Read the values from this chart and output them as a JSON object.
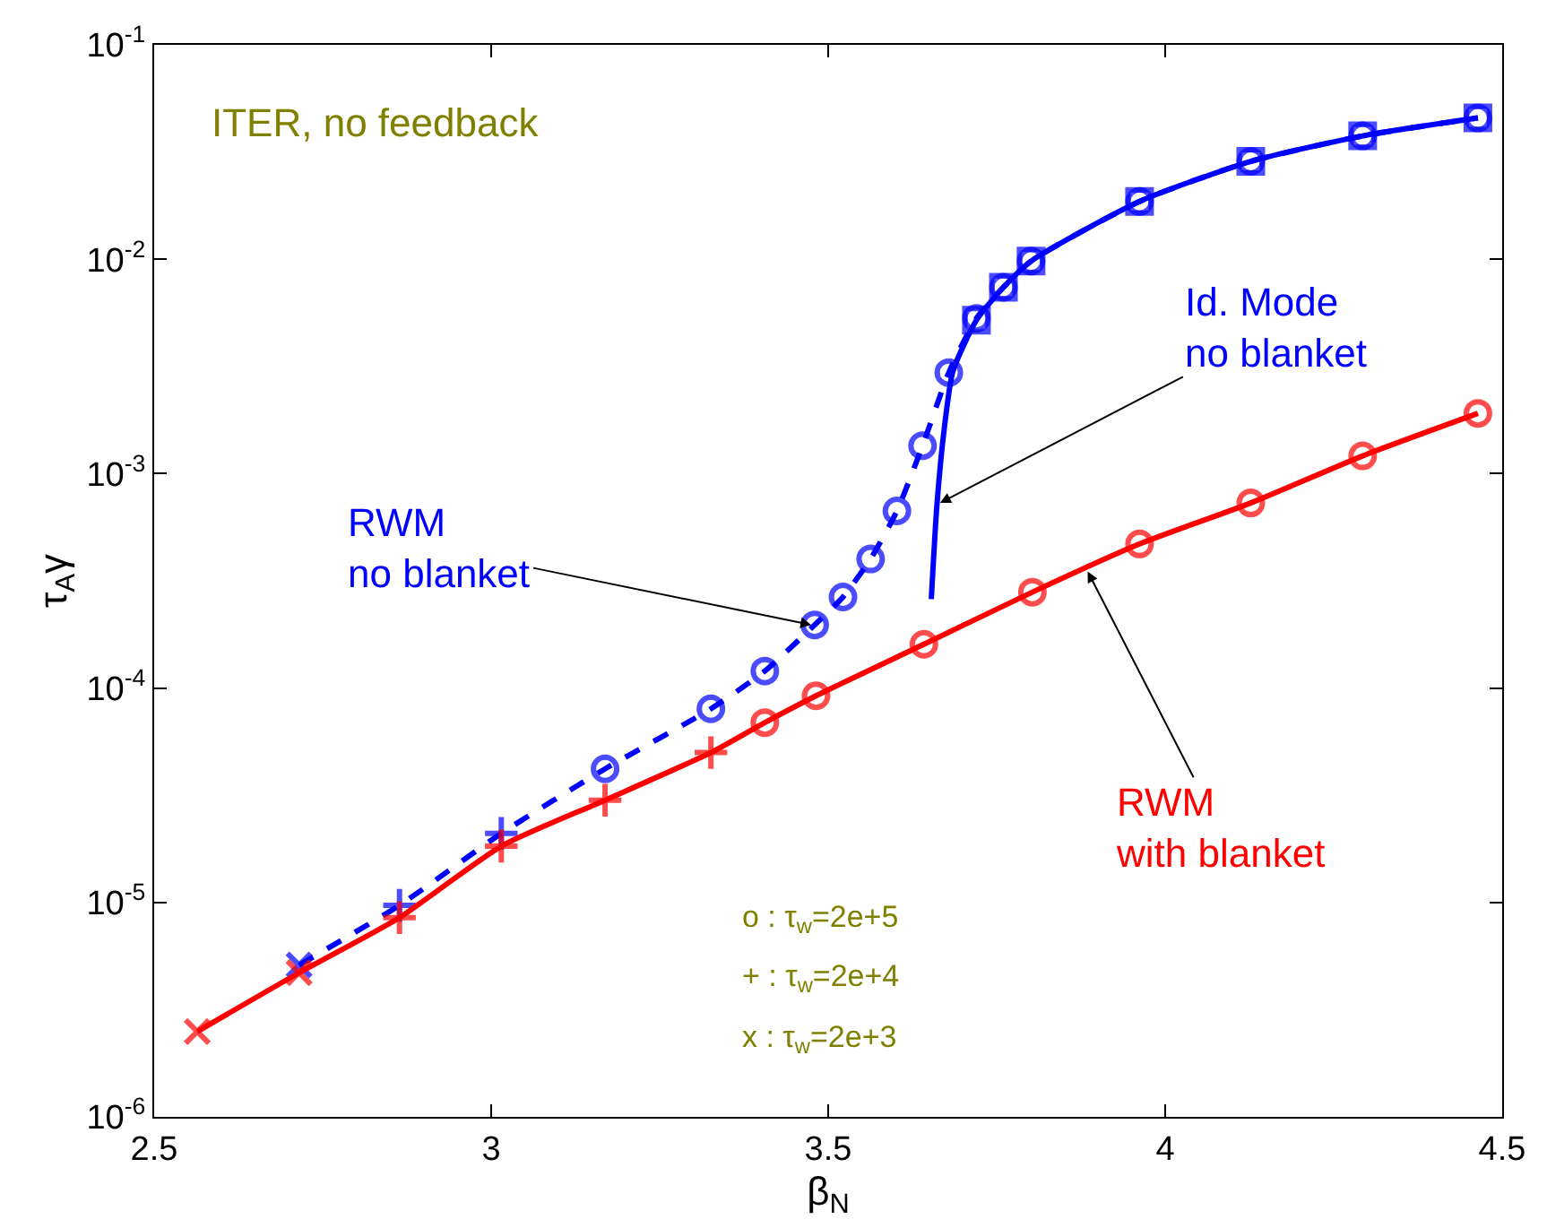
{
  "chart_data": {
    "type": "line",
    "xlabel": "β$_{N}$",
    "ylabel": "τ$_{A}$γ",
    "log": "y",
    "xlim": [
      2.5,
      4.5
    ],
    "xticks": [
      2.5,
      3,
      3.5,
      4,
      4.5
    ],
    "ylim": [
      1e-06,
      0.1
    ],
    "yticks": [
      {
        "value": 1e-06,
        "label": "10$^{-6}$"
      },
      {
        "value": 1e-05,
        "label": "10$^{-5}$"
      },
      {
        "value": 0.0001,
        "label": "10$^{-4}$"
      },
      {
        "value": 0.001,
        "label": "10$^{-3}$"
      },
      {
        "value": 0.01,
        "label": "10$^{-2}$"
      },
      {
        "value": 0.1,
        "label": "10$^{-1}$"
      }
    ],
    "series": [
      {
        "color": "#0000ff",
        "line_style": "dashed",
        "x": [
          2.715,
          2.864,
          3.015,
          3.169,
          3.326,
          3.406,
          3.48,
          3.522,
          3.563,
          3.602,
          3.64,
          3.679,
          3.72,
          3.76,
          3.801,
          3.962,
          4.127,
          4.293,
          4.464
        ],
        "values": [
          5.1e-06,
          9.7e-06,
          2.1e-05,
          4.2e-05,
          8e-05,
          0.00012,
          0.000197,
          0.000266,
          0.0004,
          0.00067,
          0.00135,
          0.00296,
          0.0053,
          0.0074,
          0.0098,
          0.0186,
          0.0286,
          0.0376,
          0.0456
        ],
        "marker": [
          "x",
          "cross",
          "cross",
          "circle",
          "circle",
          "circle",
          "circle",
          "circle",
          "circle",
          "circle",
          "circle",
          "circle",
          "circle",
          "circle",
          "circle",
          "circle",
          "circle",
          "circle",
          "circle"
        ]
      },
      {
        "color": "#0000ff",
        "line_style": "solid",
        "x": [
          3.653,
          3.661,
          3.672,
          3.685,
          3.72,
          3.76,
          3.801,
          3.962,
          4.127,
          4.293,
          4.464
        ],
        "values": [
          0.00026,
          0.00069,
          0.0016,
          0.003,
          0.0052,
          0.0074,
          0.0098,
          0.0186,
          0.0286,
          0.0376,
          0.0456
        ],
        "marker": [
          "none",
          "none",
          "none",
          "none",
          "square",
          "square",
          "square",
          "square",
          "square",
          "square",
          "square"
        ]
      },
      {
        "color": "#ff0000",
        "line_style": "solid",
        "x": [
          2.564,
          2.715,
          2.864,
          3.015,
          3.169,
          3.326,
          3.406,
          3.482,
          3.642,
          3.803,
          3.962,
          4.127,
          4.293,
          4.464
        ],
        "values": [
          2.5e-06,
          4.7e-06,
          8.5e-06,
          1.83e-05,
          3e-05,
          5e-05,
          6.9e-05,
          9.2e-05,
          0.00016,
          0.00028,
          0.00047,
          0.00073,
          0.00121,
          0.00191
        ],
        "marker": [
          "x",
          "x",
          "cross",
          "cross",
          "cross",
          "cross",
          "circle",
          "circle",
          "circle",
          "circle",
          "circle",
          "circle",
          "circle",
          "circle"
        ]
      }
    ],
    "annotations": [
      "ITER, no feedback",
      {
        "text": "RWM\nno blanket",
        "x": 3.475,
        "y": 0.000197
      },
      {
        "text": "Id. Mode\nno blanket",
        "x": 3.666,
        "y": 0.00073
      },
      {
        "text": "RWM\nwith blanket",
        "x": 3.885,
        "y": 0.00035
      },
      "o : τ$_{w}$=2e+5",
      "+ : τ$_{w}$=2e+4",
      "x : τ$_{w}$=2e+3"
    ]
  }
}
